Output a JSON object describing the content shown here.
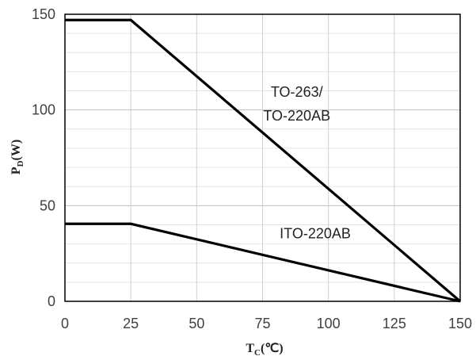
{
  "chart_data": {
    "type": "line",
    "title": "",
    "xlabel": {
      "main": "T",
      "sub": "C",
      "unit": "(℃)"
    },
    "ylabel": {
      "main": "P",
      "sub": "D",
      "unit": "(W)"
    },
    "xlim": [
      0,
      150
    ],
    "ylim": [
      0,
      150
    ],
    "x_ticks": [
      "0",
      "25",
      "50",
      "75",
      "100",
      "125",
      "150"
    ],
    "y_ticks": [
      "0",
      "50",
      "100",
      "150"
    ],
    "grid": {
      "major": true,
      "minor_y_step": 10
    },
    "legend": "none",
    "series": [
      {
        "name": "TO-263/ TO-220AB",
        "x": [
          0,
          25,
          150
        ],
        "y": [
          147,
          147,
          0
        ],
        "color": "#000000"
      },
      {
        "name": "ITO-220AB",
        "x": [
          0,
          25,
          150
        ],
        "y": [
          40.5,
          40.5,
          0
        ],
        "color": "#000000"
      }
    ],
    "annotations": [
      {
        "id": "to263",
        "lines": [
          "TO-263/",
          "TO-220AB"
        ],
        "x": 88,
        "y": 107
      },
      {
        "id": "ito220",
        "lines": [
          "ITO-220AB"
        ],
        "x": 95,
        "y": 33
      }
    ]
  }
}
